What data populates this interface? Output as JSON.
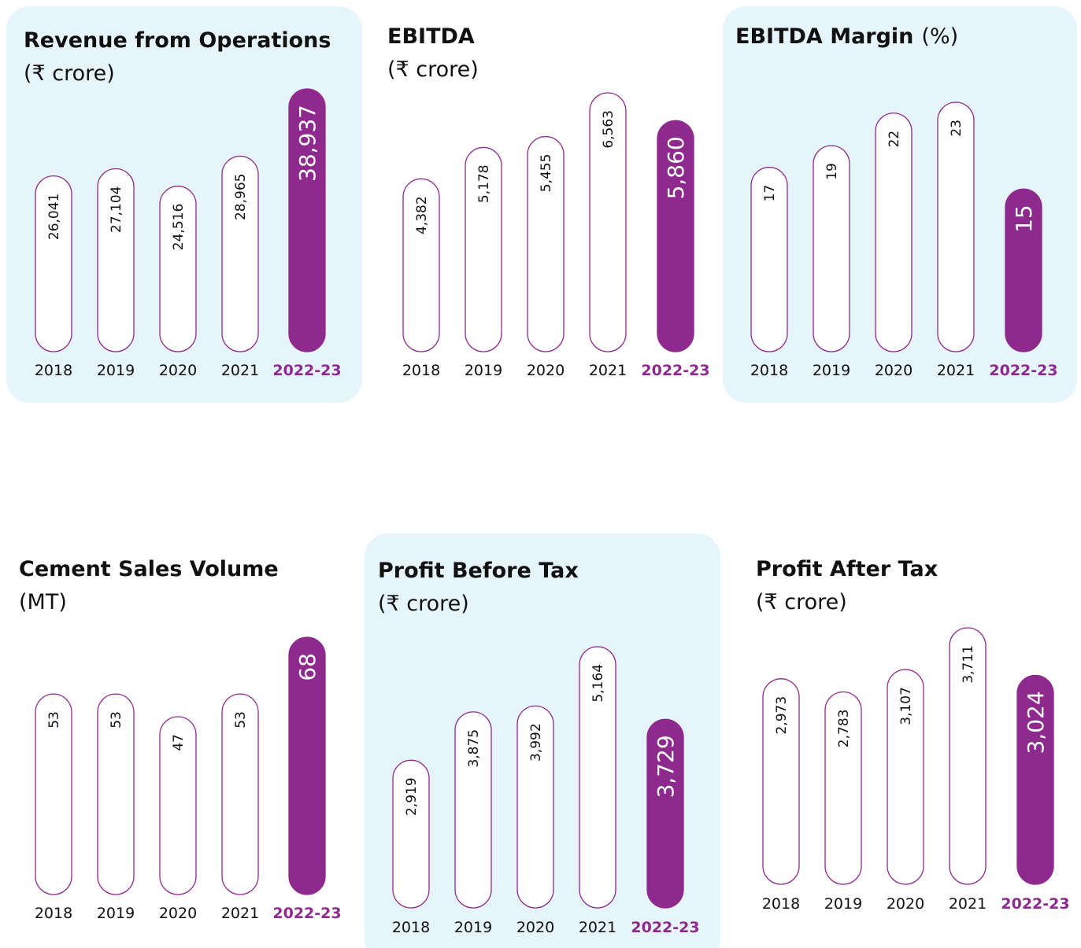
{
  "chart_data": [
    {
      "type": "bar",
      "title": "Revenue from Operations",
      "subtitle": "(₹ crore)",
      "color": "#8e2a8e",
      "categories": [
        "2018",
        "2019",
        "2020",
        "2021",
        "2022-23"
      ],
      "values": [
        26041,
        27104,
        24516,
        28965,
        38937
      ],
      "value_labels": [
        "26,041",
        "27,104",
        "24,516",
        "28,965",
        "38,937"
      ]
    },
    {
      "type": "bar",
      "title": "EBITDA",
      "subtitle": "(₹ crore)",
      "color": "#8e2a8e",
      "categories": [
        "2018",
        "2019",
        "2020",
        "2021",
        "2022-23"
      ],
      "values": [
        4382,
        5178,
        5455,
        6563,
        5860
      ],
      "value_labels": [
        "4,382",
        "5,178",
        "5,455",
        "6,563",
        "5,860"
      ]
    },
    {
      "type": "bar",
      "title": "EBITDA Margin",
      "subtitle": "(%)",
      "color": "#8e2a8e",
      "categories": [
        "2018",
        "2019",
        "2020",
        "2021",
        "2022-23"
      ],
      "values": [
        17,
        19,
        22,
        23,
        15
      ]
    },
    {
      "type": "bar",
      "title": "Cement Sales Volume",
      "subtitle": "(MT)",
      "color": "#8e2a8e",
      "categories": [
        "2018",
        "2019",
        "2020",
        "2021",
        "2022-23"
      ],
      "values": [
        53,
        53,
        47,
        53,
        68
      ]
    },
    {
      "type": "bar",
      "title": "Profit Before Tax",
      "subtitle": "(₹ crore)",
      "color": "#8e2a8e",
      "categories": [
        "2018",
        "2019",
        "2020",
        "2021",
        "2022-23"
      ],
      "values": [
        2919,
        3875,
        3992,
        5164,
        3729
      ],
      "value_labels": [
        "2,919",
        "3,875",
        "3,992",
        "5,164",
        "3,729"
      ]
    },
    {
      "type": "bar",
      "title": "Profit After Tax",
      "subtitle": "(₹ crore)",
      "color": "#8e2a8e",
      "categories": [
        "2018",
        "2019",
        "2020",
        "2021",
        "2022-23"
      ],
      "values": [
        2973,
        2783,
        3107,
        3711,
        3024
      ],
      "value_labels": [
        "2,973",
        "2,783",
        "3,107",
        "3,711",
        "3,024"
      ]
    }
  ]
}
